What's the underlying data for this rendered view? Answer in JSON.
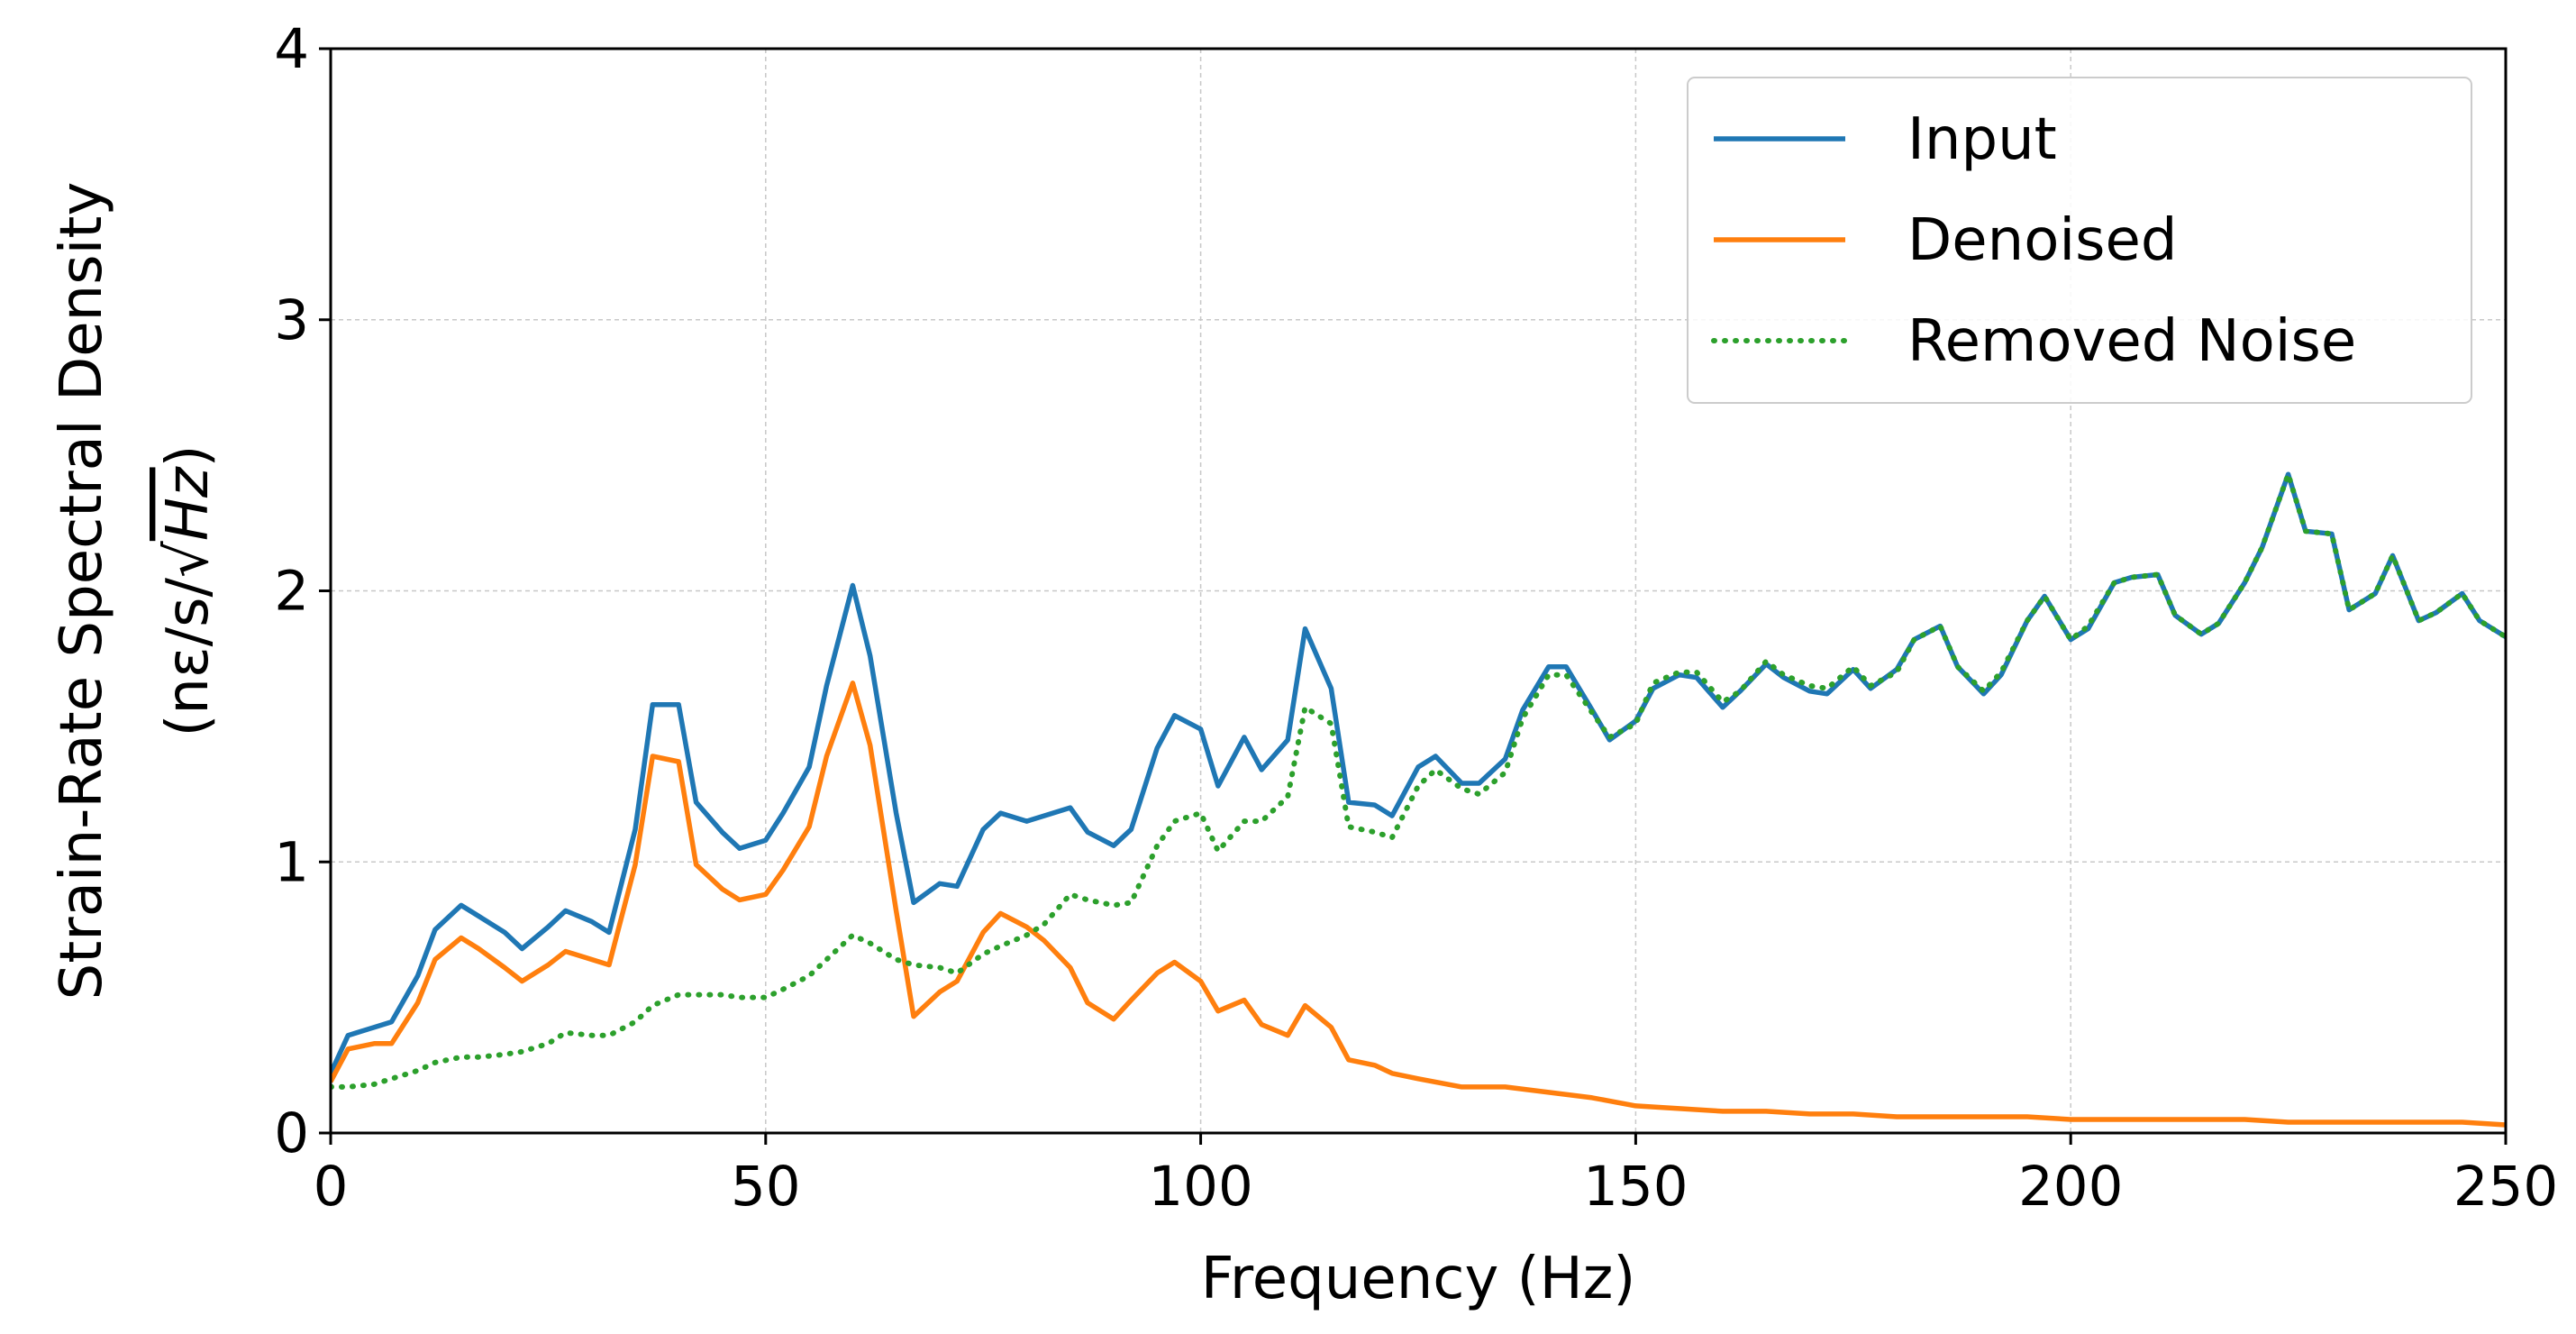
{
  "chart_data": {
    "type": "line",
    "xlabel": "Frequency (Hz)",
    "ylabel_line1": "Strain-Rate Spectral Density",
    "ylabel_line2_prefix": "(nε/s/",
    "ylabel_line2_radical": "√",
    "ylabel_line2_radicand": "Hz",
    "ylabel_line2_suffix": ")",
    "xlim": [
      0,
      250
    ],
    "ylim": [
      0,
      4
    ],
    "xticks": [
      0,
      50,
      100,
      150,
      200,
      250
    ],
    "yticks": [
      0,
      1,
      2,
      3,
      4
    ],
    "grid": true,
    "legend_position": "top-right",
    "series": [
      {
        "name": "Input",
        "color": "#1f77b4",
        "style": "solid",
        "x": [
          0,
          2,
          5,
          7,
          10,
          12,
          15,
          17,
          20,
          22,
          25,
          27,
          30,
          32,
          35,
          37,
          40,
          42,
          45,
          47,
          50,
          52,
          55,
          57,
          60,
          62,
          65,
          67,
          70,
          72,
          75,
          77,
          80,
          82,
          85,
          87,
          90,
          92,
          95,
          97,
          100,
          102,
          105,
          107,
          110,
          112,
          115,
          117,
          120,
          122,
          125,
          127,
          130,
          132,
          135,
          137,
          140,
          142,
          145,
          147,
          150,
          152,
          155,
          157,
          160,
          162,
          165,
          167,
          170,
          172,
          175,
          177,
          180,
          182,
          185,
          187,
          190,
          192,
          195,
          197,
          200,
          202,
          205,
          207,
          210,
          212,
          215,
          217,
          220,
          222,
          225,
          227,
          230,
          232,
          235,
          237,
          240,
          242,
          245,
          247,
          250
        ],
        "y": [
          0.22,
          0.36,
          0.39,
          0.41,
          0.58,
          0.75,
          0.84,
          0.8,
          0.74,
          0.68,
          0.76,
          0.82,
          0.78,
          0.74,
          1.12,
          1.58,
          1.58,
          1.22,
          1.11,
          1.05,
          1.08,
          1.18,
          1.35,
          1.65,
          2.02,
          1.76,
          1.18,
          0.85,
          0.92,
          0.91,
          1.12,
          1.18,
          1.15,
          1.17,
          1.2,
          1.11,
          1.06,
          1.12,
          1.42,
          1.54,
          1.49,
          1.28,
          1.46,
          1.34,
          1.45,
          1.86,
          1.64,
          1.22,
          1.21,
          1.17,
          1.35,
          1.39,
          1.29,
          1.29,
          1.38,
          1.56,
          1.72,
          1.72,
          1.56,
          1.45,
          1.52,
          1.64,
          1.69,
          1.68,
          1.57,
          1.63,
          1.73,
          1.68,
          1.63,
          1.62,
          1.71,
          1.64,
          1.71,
          1.82,
          1.87,
          1.72,
          1.62,
          1.69,
          1.89,
          1.98,
          1.82,
          1.86,
          2.03,
          2.05,
          2.06,
          1.91,
          1.84,
          1.88,
          2.03,
          2.16,
          2.43,
          2.22,
          2.21,
          1.93,
          1.99,
          2.13,
          1.89,
          1.92,
          1.99,
          1.89,
          1.83
        ]
      },
      {
        "name": "Denoised",
        "color": "#ff7f0e",
        "style": "solid",
        "x": [
          0,
          2,
          5,
          7,
          10,
          12,
          15,
          17,
          20,
          22,
          25,
          27,
          30,
          32,
          35,
          37,
          40,
          42,
          45,
          47,
          50,
          52,
          55,
          57,
          60,
          62,
          65,
          67,
          70,
          72,
          75,
          77,
          80,
          82,
          85,
          87,
          90,
          92,
          95,
          97,
          100,
          102,
          105,
          107,
          110,
          112,
          115,
          117,
          120,
          122,
          125,
          130,
          135,
          140,
          145,
          150,
          155,
          160,
          165,
          170,
          175,
          180,
          185,
          190,
          195,
          200,
          205,
          210,
          215,
          220,
          225,
          230,
          235,
          240,
          245,
          250
        ],
        "y": [
          0.19,
          0.31,
          0.33,
          0.33,
          0.48,
          0.64,
          0.72,
          0.68,
          0.61,
          0.56,
          0.62,
          0.67,
          0.64,
          0.62,
          0.99,
          1.39,
          1.37,
          0.99,
          0.9,
          0.86,
          0.88,
          0.97,
          1.13,
          1.39,
          1.66,
          1.43,
          0.82,
          0.43,
          0.52,
          0.56,
          0.74,
          0.81,
          0.76,
          0.71,
          0.61,
          0.48,
          0.42,
          0.49,
          0.59,
          0.63,
          0.56,
          0.45,
          0.49,
          0.4,
          0.36,
          0.47,
          0.39,
          0.27,
          0.25,
          0.22,
          0.2,
          0.17,
          0.17,
          0.15,
          0.13,
          0.1,
          0.09,
          0.08,
          0.08,
          0.07,
          0.07,
          0.06,
          0.06,
          0.06,
          0.06,
          0.05,
          0.05,
          0.05,
          0.05,
          0.05,
          0.04,
          0.04,
          0.04,
          0.04,
          0.04,
          0.03
        ]
      },
      {
        "name": "Removed Noise",
        "color": "#2ca02c",
        "style": "dotted",
        "x": [
          0,
          2,
          5,
          7,
          10,
          12,
          15,
          17,
          20,
          22,
          25,
          27,
          30,
          32,
          35,
          37,
          40,
          42,
          45,
          47,
          50,
          52,
          55,
          57,
          60,
          62,
          65,
          67,
          70,
          72,
          75,
          77,
          80,
          82,
          85,
          87,
          90,
          92,
          95,
          97,
          100,
          102,
          105,
          107,
          110,
          112,
          115,
          117,
          120,
          122,
          125,
          127,
          130,
          132,
          135,
          137,
          140,
          142,
          145,
          147,
          150,
          152,
          155,
          157,
          160,
          162,
          165,
          167,
          170,
          172,
          175,
          177,
          180,
          182,
          185,
          187,
          190,
          192,
          195,
          197,
          200,
          202,
          205,
          207,
          210,
          212,
          215,
          217,
          220,
          222,
          225,
          227,
          230,
          232,
          235,
          237,
          240,
          242,
          245,
          247,
          250
        ],
        "y": [
          0.17,
          0.17,
          0.18,
          0.2,
          0.23,
          0.26,
          0.28,
          0.28,
          0.29,
          0.3,
          0.33,
          0.37,
          0.36,
          0.36,
          0.41,
          0.47,
          0.51,
          0.51,
          0.51,
          0.5,
          0.5,
          0.53,
          0.58,
          0.64,
          0.73,
          0.7,
          0.64,
          0.62,
          0.61,
          0.59,
          0.66,
          0.69,
          0.73,
          0.77,
          0.88,
          0.86,
          0.84,
          0.85,
          1.06,
          1.15,
          1.18,
          1.04,
          1.15,
          1.15,
          1.24,
          1.57,
          1.51,
          1.13,
          1.11,
          1.09,
          1.28,
          1.34,
          1.27,
          1.25,
          1.33,
          1.53,
          1.69,
          1.69,
          1.55,
          1.46,
          1.51,
          1.66,
          1.7,
          1.7,
          1.59,
          1.63,
          1.74,
          1.69,
          1.65,
          1.64,
          1.72,
          1.65,
          1.7,
          1.82,
          1.87,
          1.72,
          1.63,
          1.7,
          1.89,
          1.98,
          1.82,
          1.87,
          2.03,
          2.05,
          2.06,
          1.91,
          1.84,
          1.88,
          2.03,
          2.16,
          2.43,
          2.22,
          2.21,
          1.93,
          1.99,
          2.13,
          1.89,
          1.92,
          1.99,
          1.89,
          1.83
        ]
      }
    ]
  }
}
